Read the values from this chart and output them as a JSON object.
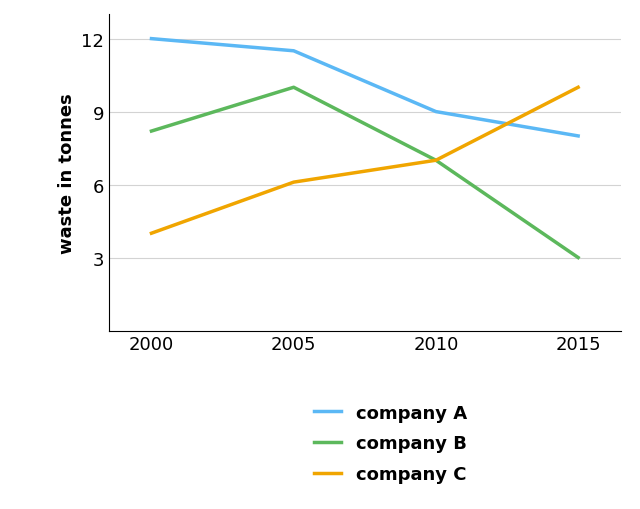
{
  "years": [
    2000,
    2005,
    2010,
    2015
  ],
  "company_A": [
    12,
    11.5,
    9,
    8
  ],
  "company_B": [
    8.2,
    10,
    7,
    3
  ],
  "company_C": [
    4,
    6.1,
    7,
    10
  ],
  "company_A_color": "#5bb8f5",
  "company_B_color": "#5cb85c",
  "company_C_color": "#f0a500",
  "ylabel": "waste in tonnes",
  "yticks": [
    3,
    6,
    9,
    12
  ],
  "xticks": [
    2000,
    2005,
    2010,
    2015
  ],
  "ylim": [
    0,
    13
  ],
  "xlim": [
    1998.5,
    2016.5
  ],
  "line_width": 2.5,
  "legend_labels": [
    "company A",
    "company B",
    "company C"
  ],
  "legend_fontsize": 13,
  "tick_fontsize": 13,
  "ylabel_fontsize": 13
}
